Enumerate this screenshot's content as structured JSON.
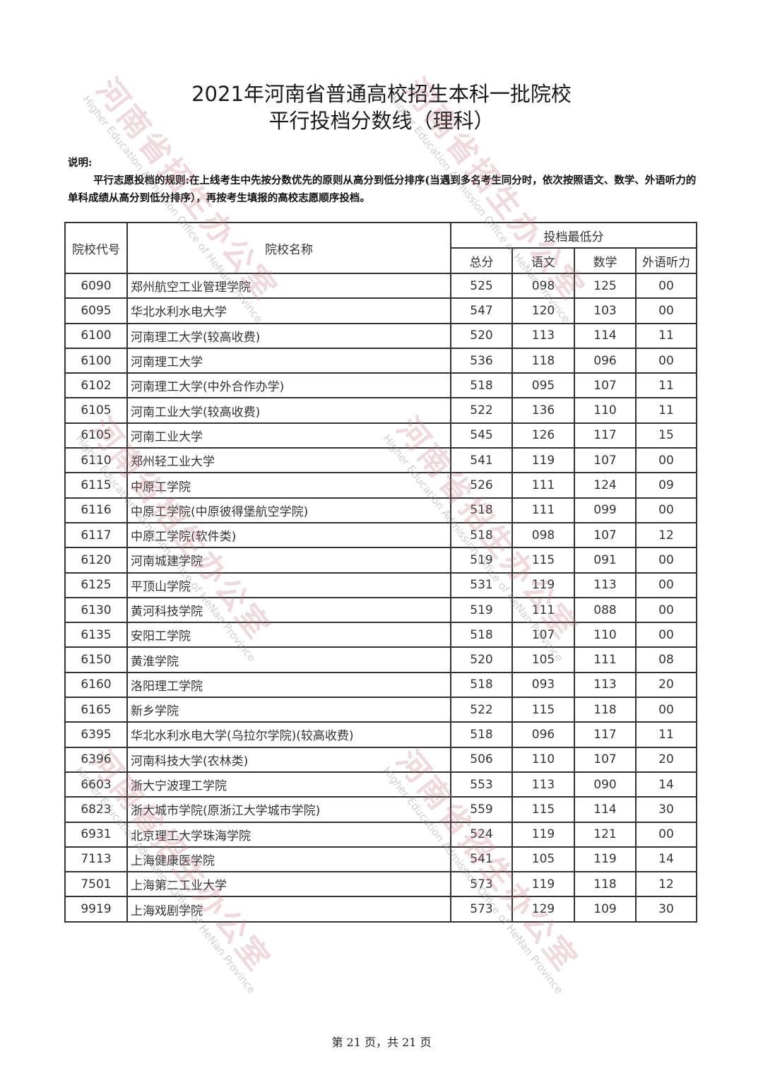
{
  "title_line1": "2021年河南省普通高校招生本科一批院校",
  "title_line2": "平行投档分数线（理科）",
  "notes_label": "说明:",
  "notes_text": "平行志愿投档的规则:在上线考生中先按分数优先的原则从高分到低分排序(当遇到多名考生同分时，依次按照语文、数学、外语听力的单科成绩从高分到低分排序），再按考生填报的高校志愿顺序投档。",
  "table": {
    "headers": {
      "code": "院校代号",
      "name": "院校名称",
      "group": "投档最低分",
      "total": "总分",
      "chinese": "语文",
      "math": "数学",
      "listening": "外语听力"
    },
    "rows": [
      [
        "6090",
        "郑州航空工业管理学院",
        "525",
        "098",
        "125",
        "00"
      ],
      [
        "6095",
        "华北水利水电大学",
        "547",
        "120",
        "103",
        "00"
      ],
      [
        "6100",
        "河南理工大学(较高收费)",
        "520",
        "113",
        "114",
        "11"
      ],
      [
        "6100",
        "河南理工大学",
        "536",
        "118",
        "096",
        "00"
      ],
      [
        "6102",
        "河南理工大学(中外合作办学)",
        "518",
        "095",
        "107",
        "11"
      ],
      [
        "6105",
        "河南工业大学(较高收费)",
        "522",
        "136",
        "110",
        "11"
      ],
      [
        "6105",
        "河南工业大学",
        "545",
        "126",
        "117",
        "15"
      ],
      [
        "6110",
        "郑州轻工业大学",
        "541",
        "119",
        "107",
        "00"
      ],
      [
        "6115",
        "中原工学院",
        "526",
        "111",
        "124",
        "09"
      ],
      [
        "6116",
        "中原工学院(中原彼得堡航空学院)",
        "518",
        "111",
        "099",
        "00"
      ],
      [
        "6117",
        "中原工学院(软件类)",
        "518",
        "098",
        "107",
        "12"
      ],
      [
        "6120",
        "河南城建学院",
        "519",
        "115",
        "091",
        "00"
      ],
      [
        "6125",
        "平顶山学院",
        "531",
        "119",
        "113",
        "00"
      ],
      [
        "6130",
        "黄河科技学院",
        "519",
        "111",
        "088",
        "00"
      ],
      [
        "6135",
        "安阳工学院",
        "518",
        "107",
        "110",
        "00"
      ],
      [
        "6150",
        "黄淮学院",
        "520",
        "105",
        "111",
        "08"
      ],
      [
        "6160",
        "洛阳理工学院",
        "518",
        "093",
        "113",
        "20"
      ],
      [
        "6165",
        "新乡学院",
        "522",
        "115",
        "118",
        "00"
      ],
      [
        "6395",
        "华北水利水电大学(乌拉尔学院)(较高收费)",
        "518",
        "096",
        "117",
        "11"
      ],
      [
        "6396",
        "河南科技大学(农林类)",
        "506",
        "110",
        "107",
        "20"
      ],
      [
        "6603",
        "浙大宁波理工学院",
        "553",
        "113",
        "090",
        "14"
      ],
      [
        "6823",
        "浙大城市学院(原浙江大学城市学院)",
        "559",
        "115",
        "114",
        "30"
      ],
      [
        "6931",
        "北京理工大学珠海学院",
        "524",
        "119",
        "121",
        "00"
      ],
      [
        "7113",
        "上海健康医学院",
        "541",
        "105",
        "119",
        "14"
      ],
      [
        "7501",
        "上海第二工业大学",
        "573",
        "119",
        "118",
        "12"
      ],
      [
        "9919",
        "上海戏剧学院",
        "573",
        "129",
        "109",
        "30"
      ]
    ]
  },
  "footer": "第 21 页，共 21 页",
  "watermark": {
    "cn": "河南省招生办公室",
    "en": "Higher Education Admission Office of HeNan Province"
  }
}
